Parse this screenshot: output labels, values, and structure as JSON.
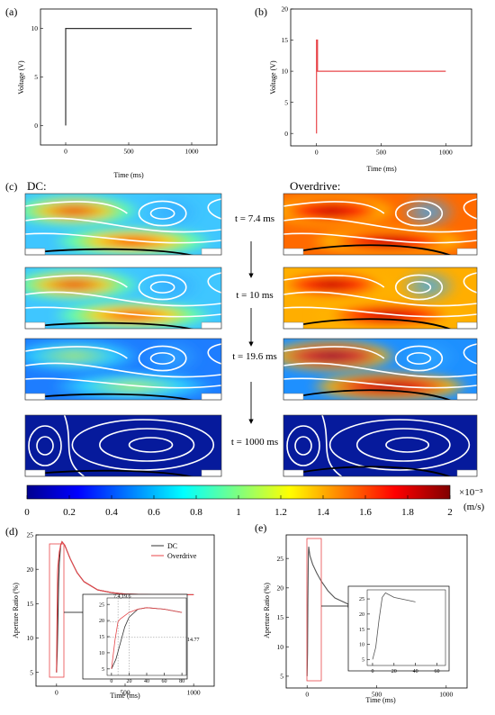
{
  "panels": {
    "a": {
      "label": "(a)",
      "xlabel": "Time (ms)",
      "ylabel": "Voltage (V)",
      "xticks": [
        "0",
        "500",
        "1000"
      ],
      "yticks": [
        "0",
        "5",
        "10"
      ],
      "xlim": [
        -200,
        1200
      ],
      "ylim": [
        -2,
        12
      ],
      "color": "#333333"
    },
    "b": {
      "label": "(b)",
      "xlabel": "Time (ms)",
      "ylabel": "Voltage (V)",
      "xticks": [
        "0",
        "500",
        "1000"
      ],
      "yticks": [
        "0",
        "5",
        "10",
        "15",
        "20"
      ],
      "xlim": [
        -200,
        1200
      ],
      "ylim": [
        -2,
        20
      ],
      "color": "#e8464a"
    },
    "c": {
      "label": "(c)",
      "dc_label": "DC:",
      "overdrive_label": "Overdrive:",
      "times": [
        "t = 7.4 ms",
        "t = 10 ms",
        "t = 19.6 ms",
        "t = 1000 ms"
      ],
      "colorbar": {
        "ticks": [
          "0",
          "0.2",
          "0.4",
          "0.6",
          "0.8",
          "1",
          "1.2",
          "1.4",
          "1.6",
          "1.8",
          "2"
        ],
        "scale": "×10⁻³",
        "unit": "(m/s)",
        "colormap": "jet"
      }
    },
    "d": {
      "label": "(d)",
      "xlabel": "Time (ms)",
      "ylabel": "Aperture Ratio (%)",
      "xticks": [
        "0",
        "500",
        "1000"
      ],
      "yticks": [
        "5",
        "10",
        "15",
        "20",
        "25"
      ],
      "legend": [
        "DC",
        "Overdrive"
      ],
      "inset": {
        "xticks": [
          "0",
          "20",
          "40",
          "60",
          "80"
        ],
        "yticks": [
          "5",
          "10",
          "15",
          "20",
          "25"
        ],
        "annot_point": "7.4,19.6",
        "annot_level": "14.77"
      }
    },
    "e": {
      "label": "(e)",
      "xlabel": "Time (ms)",
      "ylabel": "Aperture Ratio (%)",
      "xticks": [
        "0",
        "500",
        "1000"
      ],
      "yticks": [
        "5",
        "10",
        "15",
        "20",
        "25"
      ],
      "inset": {
        "xticks": [
          "0",
          "20",
          "40",
          "60"
        ],
        "yticks": [
          "5",
          "10",
          "15",
          "20",
          "25"
        ]
      }
    }
  },
  "chart_data": [
    {
      "id": "a",
      "type": "line",
      "xlabel": "Time (ms)",
      "ylabel": "Voltage (V)",
      "xlim": [
        -200,
        1200
      ],
      "ylim": [
        -2,
        12
      ],
      "series": [
        {
          "x": [
            0,
            0,
            1000
          ],
          "values": [
            0,
            10,
            10
          ]
        }
      ]
    },
    {
      "id": "b",
      "type": "line",
      "xlabel": "Time (ms)",
      "ylabel": "Voltage (V)",
      "xlim": [
        -200,
        1200
      ],
      "ylim": [
        -2,
        20
      ],
      "series": [
        {
          "x": [
            0,
            0,
            7.4,
            7.4,
            1000
          ],
          "values": [
            0,
            15,
            15,
            10,
            10
          ]
        }
      ]
    },
    {
      "id": "d",
      "type": "line",
      "xlabel": "Time (ms)",
      "ylabel": "Aperture Ratio (%)",
      "xlim": [
        -150,
        1150
      ],
      "ylim": [
        3,
        25
      ],
      "series": [
        {
          "name": "DC",
          "x": [
            0,
            5,
            10,
            15,
            20,
            30,
            40,
            60,
            80,
            100,
            150,
            200,
            300,
            400,
            500,
            700,
            1000
          ],
          "values": [
            5,
            8,
            13,
            18,
            21,
            23.5,
            24,
            23.5,
            22.5,
            21.5,
            19.5,
            18.2,
            17,
            16.6,
            16.4,
            16.3,
            16.3
          ],
          "color": "#333333"
        },
        {
          "name": "Overdrive",
          "x": [
            0,
            4,
            7.4,
            10,
            20,
            30,
            40,
            60,
            80,
            100,
            150,
            200,
            300,
            400,
            500,
            700,
            1000
          ],
          "values": [
            5,
            14,
            19.6,
            20.5,
            22.5,
            23.5,
            24,
            23.5,
            22.5,
            21.5,
            19.5,
            18.2,
            17,
            16.6,
            16.4,
            16.3,
            16.3
          ],
          "color": "#e8464a"
        }
      ]
    },
    {
      "id": "e",
      "type": "line",
      "xlabel": "Time (ms)",
      "ylabel": "Aperture Ratio (%)",
      "xlim": [
        -150,
        1150
      ],
      "ylim": [
        3,
        29
      ],
      "series": [
        {
          "x": [
            0,
            3,
            6,
            9,
            12,
            20,
            40,
            70,
            100,
            150,
            200,
            300,
            400,
            500,
            700,
            1000
          ],
          "values": [
            5,
            9,
            18,
            25.5,
            27,
            25.5,
            24,
            22.5,
            21.2,
            19.5,
            18.3,
            17.2,
            16.7,
            16.5,
            16.4,
            16.4
          ],
          "color": "#555555"
        }
      ]
    }
  ]
}
